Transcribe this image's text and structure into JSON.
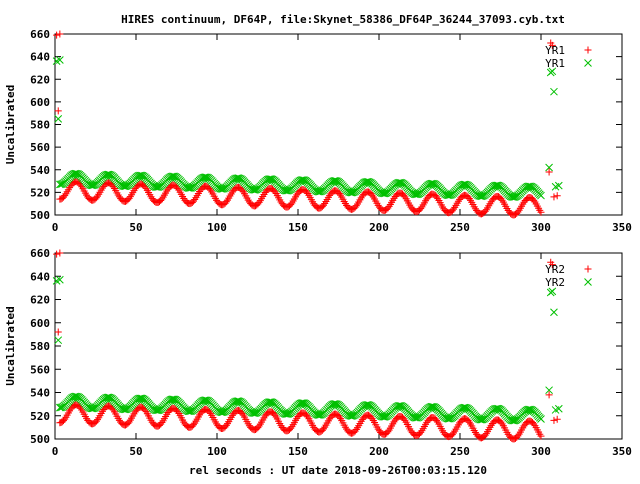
{
  "title": "HIRES continuum, DF64P, file:Skynet_58386_DF64P_36244_37093.cyb.txt",
  "xlabel": "rel seconds : UT date 2018-09-26T00:03:15.120",
  "colors": {
    "red": "#ff0000",
    "green": "#00c000"
  },
  "chart_data": [
    {
      "type": "scatter",
      "ylabel": "Uncalibrated",
      "xlim": [
        0,
        350
      ],
      "ylim": [
        500,
        660
      ],
      "x_ticks": [
        0,
        50,
        100,
        150,
        200,
        250,
        300,
        350
      ],
      "y_ticks": [
        500,
        520,
        540,
        560,
        580,
        600,
        620,
        640,
        660
      ],
      "legend_position": "top-right",
      "series": [
        {
          "name": "YR1",
          "marker": "plus",
          "color": "#ff0000",
          "points": [
            [
              1,
              659
            ],
            [
              2,
              592
            ],
            [
              3,
              660
            ]
          ],
          "wave": {
            "x_start": 3,
            "x_end": 300,
            "step": 0.75,
            "mean": 522,
            "amp": 8,
            "trend": -0.05,
            "period": 20,
            "phase": 0
          },
          "tail": [
            [
              305,
              538
            ],
            [
              306,
              652
            ],
            [
              307,
              650
            ],
            [
              308,
              516
            ],
            [
              310,
              517
            ]
          ]
        },
        {
          "name": "YR1",
          "marker": "x",
          "color": "#00c000",
          "points": [
            [
              1,
              636
            ],
            [
              2,
              585
            ],
            [
              3,
              637
            ]
          ],
          "wave": {
            "x_start": 3,
            "x_end": 300,
            "step": 0.75,
            "mean": 532,
            "amp": 5,
            "trend": -0.04,
            "period": 20,
            "phase": 0
          },
          "tail": [
            [
              305,
              542
            ],
            [
              306,
              626
            ],
            [
              307,
              627
            ],
            [
              308,
              609
            ],
            [
              309,
              525
            ],
            [
              311,
              526
            ]
          ]
        }
      ]
    },
    {
      "type": "scatter",
      "ylabel": "Uncalibrated",
      "xlim": [
        0,
        350
      ],
      "ylim": [
        500,
        660
      ],
      "x_ticks": [
        0,
        50,
        100,
        150,
        200,
        250,
        300,
        350
      ],
      "y_ticks": [
        500,
        520,
        540,
        560,
        580,
        600,
        620,
        640,
        660
      ],
      "legend_position": "top-right",
      "series": [
        {
          "name": "YR2",
          "marker": "plus",
          "color": "#ff0000",
          "points": [
            [
              1,
              659
            ],
            [
              2,
              592
            ],
            [
              3,
              660
            ]
          ],
          "wave": {
            "x_start": 3,
            "x_end": 300,
            "step": 0.75,
            "mean": 522,
            "amp": 8,
            "trend": -0.05,
            "period": 20,
            "phase": 0
          },
          "tail": [
            [
              305,
              538
            ],
            [
              306,
              652
            ],
            [
              307,
              650
            ],
            [
              308,
              516
            ],
            [
              310,
              517
            ]
          ]
        },
        {
          "name": "YR2",
          "marker": "x",
          "color": "#00c000",
          "points": [
            [
              1,
              636
            ],
            [
              2,
              585
            ],
            [
              3,
              637
            ]
          ],
          "wave": {
            "x_start": 3,
            "x_end": 300,
            "step": 0.75,
            "mean": 532,
            "amp": 5,
            "trend": -0.04,
            "period": 20,
            "phase": 0
          },
          "tail": [
            [
              305,
              542
            ],
            [
              306,
              626
            ],
            [
              307,
              627
            ],
            [
              308,
              609
            ],
            [
              309,
              525
            ],
            [
              311,
              526
            ]
          ]
        }
      ]
    }
  ]
}
